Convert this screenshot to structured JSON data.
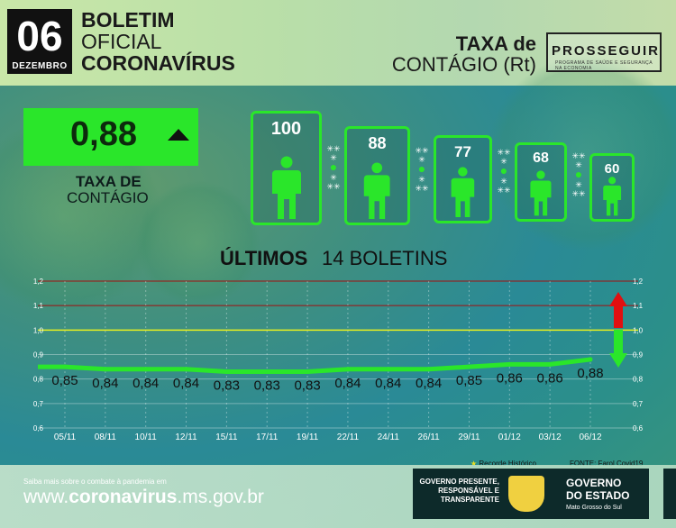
{
  "header": {
    "day": "06",
    "month": "DEZEMBRO",
    "title_line1": "BOLETIM",
    "title_line2": "OFICIAL",
    "title_line3": "CORONAVÍRUS",
    "rt_line1": "TAXA de",
    "rt_line2": "CONTÁGIO (Rt)",
    "logo": "PROSSEGUIR",
    "logo_sub": "PROGRAMA DE SAÚDE E SEGURANÇA NA ECONOMIA"
  },
  "rate": {
    "value": "0,88",
    "trend": "up",
    "label_line1": "TAXA DE",
    "label_line2": "CONTÁGIO"
  },
  "contagion": {
    "people": [
      "100",
      "88",
      "77",
      "68",
      "60"
    ]
  },
  "chart_data": {
    "type": "line",
    "title_bold": "ÚLTIMOS",
    "title_regular": "14 BOLETINS",
    "categories": [
      "05/11",
      "08/11",
      "10/11",
      "12/11",
      "15/11",
      "17/11",
      "19/11",
      "22/11",
      "24/11",
      "26/11",
      "29/11",
      "01/12",
      "03/12",
      "06/12"
    ],
    "values": [
      0.85,
      0.84,
      0.84,
      0.84,
      0.83,
      0.83,
      0.83,
      0.84,
      0.84,
      0.84,
      0.85,
      0.86,
      0.86,
      0.88
    ],
    "value_labels": [
      "0,85",
      "0,84",
      "0,84",
      "0,84",
      "0,83",
      "0,83",
      "0,83",
      "0,84",
      "0,84",
      "0,84",
      "0,85",
      "0,86",
      "0,86",
      "0,88"
    ],
    "yticks": [
      "0,6",
      "0,7",
      "0,8",
      "0,9",
      "1,0",
      "1,1",
      "1,2"
    ],
    "ylim": [
      0.6,
      1.2
    ],
    "legend": "Recorde Histórico",
    "source": "FONTE: Farol Covid19",
    "colors": {
      "line": "#2ae62a",
      "threshold": "#e8f020",
      "upper_grid": "#a01010",
      "up_arrow": "#e01010",
      "down_arrow": "#2ae62a"
    }
  },
  "footer": {
    "note": "Saiba mais sobre o combate à pandemia em",
    "url_prefix": "www.",
    "url_bold": "coronavirus",
    "url_suffix": ".ms.gov.br",
    "slogan": "GOVERNO PRESENTE, RESPONSÁVEL E TRANSPARENTE",
    "gov_line1": "GOVERNO",
    "gov_line2": "DO ESTADO",
    "gov_line3": "Mato Grosso do Sul"
  }
}
